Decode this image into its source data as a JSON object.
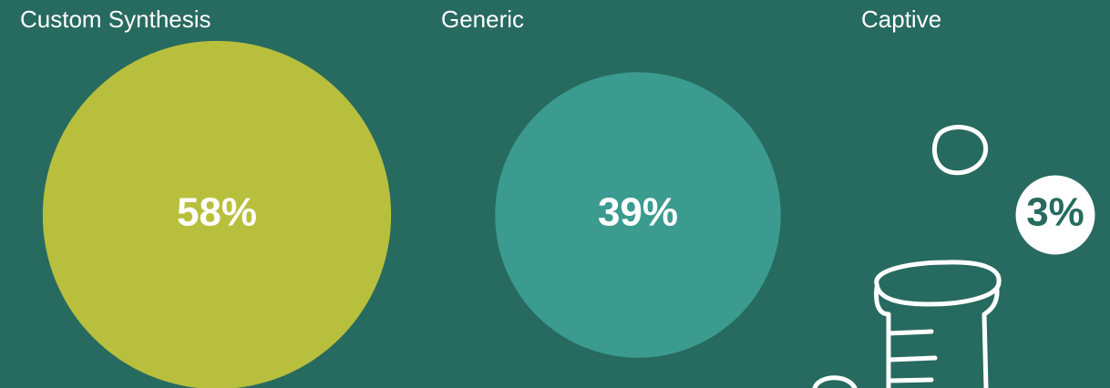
{
  "chart_data": {
    "type": "bubble",
    "categories": [
      "Custom Synthesis",
      "Generic",
      "Captive"
    ],
    "values": [
      58,
      39,
      3
    ],
    "value_labels": [
      "58%",
      "39%",
      "3%"
    ],
    "colors": [
      "#b8bf3c",
      "#3a9b8e",
      "#ffffff"
    ]
  }
}
